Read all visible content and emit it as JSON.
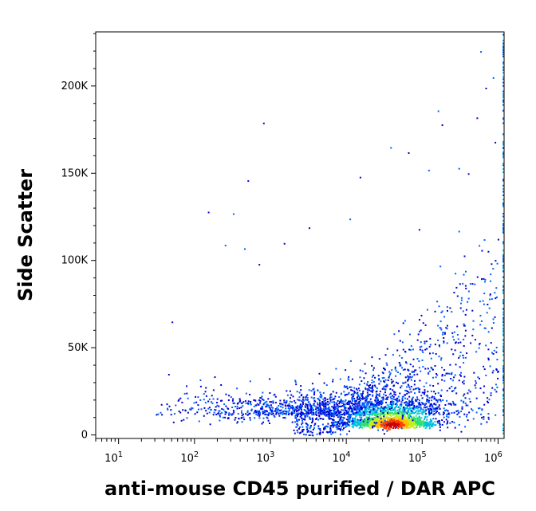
{
  "chart_data": {
    "type": "scatter",
    "title": "",
    "xlabel": "anti-mouse CD45 purified / DAR APC",
    "ylabel": "Side Scatter",
    "x_scale": "log",
    "xlim": [
      5,
      1200000
    ],
    "ylim": [
      -2000,
      231000
    ],
    "x_ticks": [
      {
        "value": 10,
        "base": "10",
        "exp": "1"
      },
      {
        "value": 100,
        "base": "10",
        "exp": "2"
      },
      {
        "value": 1000,
        "base": "10",
        "exp": "3"
      },
      {
        "value": 10000,
        "base": "10",
        "exp": "4"
      },
      {
        "value": 100000,
        "base": "10",
        "exp": "5"
      },
      {
        "value": 1000000,
        "base": "10",
        "exp": "6"
      }
    ],
    "y_ticks": [
      {
        "value": 0,
        "label": "0"
      },
      {
        "value": 50000,
        "label": "50K"
      },
      {
        "value": 100000,
        "label": "100K"
      },
      {
        "value": 150000,
        "label": "150K"
      },
      {
        "value": 200000,
        "label": "200K"
      }
    ],
    "density_colormap": [
      "#0000d0",
      "#0060ff",
      "#00c0e0",
      "#30e070",
      "#c0f020",
      "#ffc000",
      "#ff4000",
      "#d00000"
    ],
    "populations": [
      {
        "name_hidden": "",
        "x_center": 40000,
        "y_center": 6000,
        "log_spread": 0.28,
        "y_spread": 2500,
        "weight": 0.9
      },
      {
        "name_hidden": "",
        "x_center": 30000,
        "y_center": 12000,
        "log_spread": 0.5,
        "y_spread": 9000,
        "weight": 0.6
      },
      {
        "name_hidden": "",
        "x_center": 1500,
        "y_center": 12000,
        "log_spread": 0.7,
        "y_spread": 8000,
        "weight": 0.45
      }
    ],
    "points": [
      [
        800,
        179000
      ],
      [
        38000,
        165000
      ],
      [
        65000,
        162000
      ],
      [
        180000,
        178000
      ],
      [
        520000,
        182000
      ],
      [
        300000,
        153000
      ],
      [
        400000,
        150000
      ],
      [
        120000,
        152000
      ],
      [
        15000,
        148000
      ],
      [
        500,
        146000
      ],
      [
        150,
        128000
      ],
      [
        320,
        127000
      ],
      [
        11000,
        124000
      ],
      [
        3200,
        119000
      ],
      [
        90000,
        118000
      ],
      [
        1500,
        110000
      ],
      [
        300000,
        117000
      ],
      [
        250,
        109000
      ],
      [
        450,
        107000
      ],
      [
        600000,
        106000
      ],
      [
        700,
        98000
      ],
      [
        170000,
        97000
      ],
      [
        50,
        65000
      ],
      [
        45,
        35000
      ],
      [
        60,
        20000
      ],
      [
        580000,
        220000
      ],
      [
        850000,
        205000
      ],
      [
        680000,
        199000
      ],
      [
        160000,
        186000
      ],
      [
        900000,
        168000
      ]
    ]
  }
}
